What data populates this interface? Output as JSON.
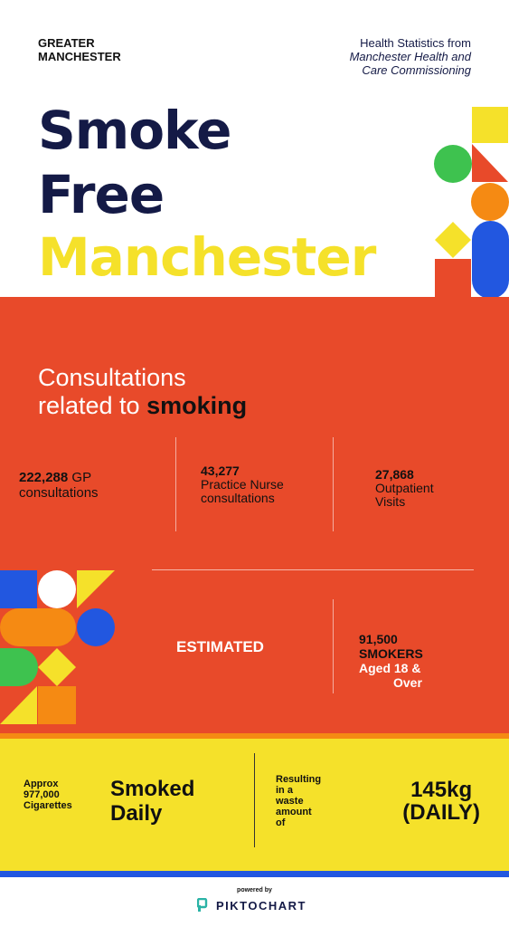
{
  "header": {
    "region_line1": "GREATER",
    "region_line2": "MANCHESTER",
    "source_line1": "Health Statistics from",
    "source_line2": "Manchester Health and",
    "source_line3": "Care Commissioning"
  },
  "title": {
    "line1": "Smoke",
    "line2": "Free",
    "line3": "Manchester"
  },
  "consultations": {
    "heading_line1": "Consultations",
    "heading_line2_prefix": "related to ",
    "heading_line2_emphasis": "smoking",
    "stats": [
      {
        "value": "222,288",
        "label_inline": "GP",
        "label_rest": "consultations"
      },
      {
        "value": "43,277",
        "label_line1": "Practice Nurse",
        "label_line2": "consultations"
      },
      {
        "value": "27,868",
        "label_line1": "Outpatient",
        "label_line2": "Visits"
      }
    ]
  },
  "estimated": {
    "label": "ESTIMATED",
    "value_line1": "91,500",
    "value_line2": "SMOKERS",
    "value_line3": "Aged 18 &",
    "value_line4": "Over"
  },
  "daily": {
    "approx_line1": "Approx",
    "approx_line2": "977,000",
    "approx_line3": "Cigarettes",
    "smoked_line1": "Smoked",
    "smoked_line2": "Daily",
    "result_line1": "Resulting",
    "result_line2": "in a",
    "result_line3": "waste",
    "result_line4": "amount",
    "result_line5": "of",
    "waste_line1": "145kg",
    "waste_line2": "(DAILY)"
  },
  "footer": {
    "powered_by": "powered by",
    "brand": "PIKTOCHART"
  },
  "colors": {
    "navy": "#141a46",
    "yellow": "#f5e12a",
    "red": "#e84a2a",
    "orange": "#f58a13",
    "green": "#3ec24f",
    "blue": "#2257e0",
    "teal": "#2bb3a6"
  }
}
